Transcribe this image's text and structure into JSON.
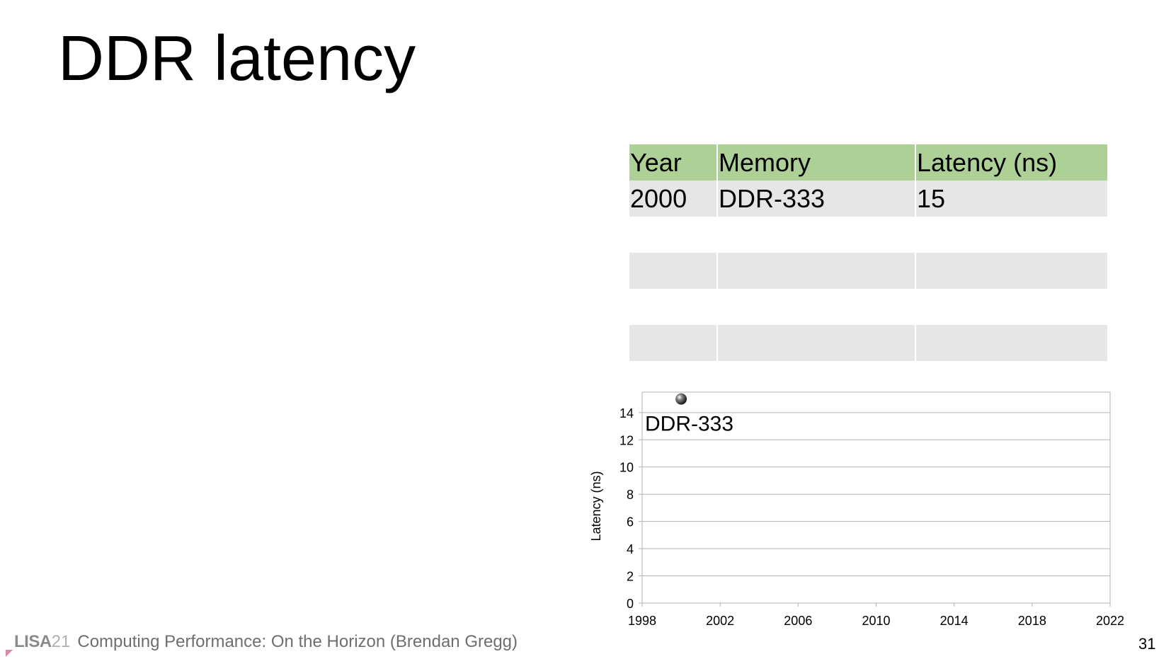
{
  "slide": {
    "title": "DDR latency",
    "page_number": "31"
  },
  "footer": {
    "logo_text": "LISA",
    "logo_number": "21",
    "text": "Computing Performance: On the Horizon (Brendan Gregg)"
  },
  "table": {
    "headers": [
      "Year",
      "Memory",
      "Latency (ns)"
    ],
    "rows": [
      [
        "2000",
        "DDR-333",
        "15"
      ],
      [
        "",
        "",
        ""
      ],
      [
        "",
        "",
        ""
      ],
      [
        "",
        "",
        ""
      ],
      [
        "",
        "",
        ""
      ]
    ],
    "header_color": "#acd095",
    "shade_color": "#e6e6e6"
  },
  "chart_data": {
    "type": "scatter",
    "title": "",
    "xlabel": "",
    "ylabel": "Latency (ns)",
    "xlim": [
      1998,
      2022
    ],
    "ylim": [
      0,
      15.5
    ],
    "xticks": [
      1998,
      2002,
      2006,
      2010,
      2014,
      2018,
      2022
    ],
    "yticks": [
      0,
      2,
      4,
      6,
      8,
      10,
      12,
      14
    ],
    "grid": true,
    "legend": "none",
    "points": [
      {
        "x": 2000,
        "y": 15,
        "label": "DDR-333"
      }
    ],
    "marker_color": "#333333"
  }
}
